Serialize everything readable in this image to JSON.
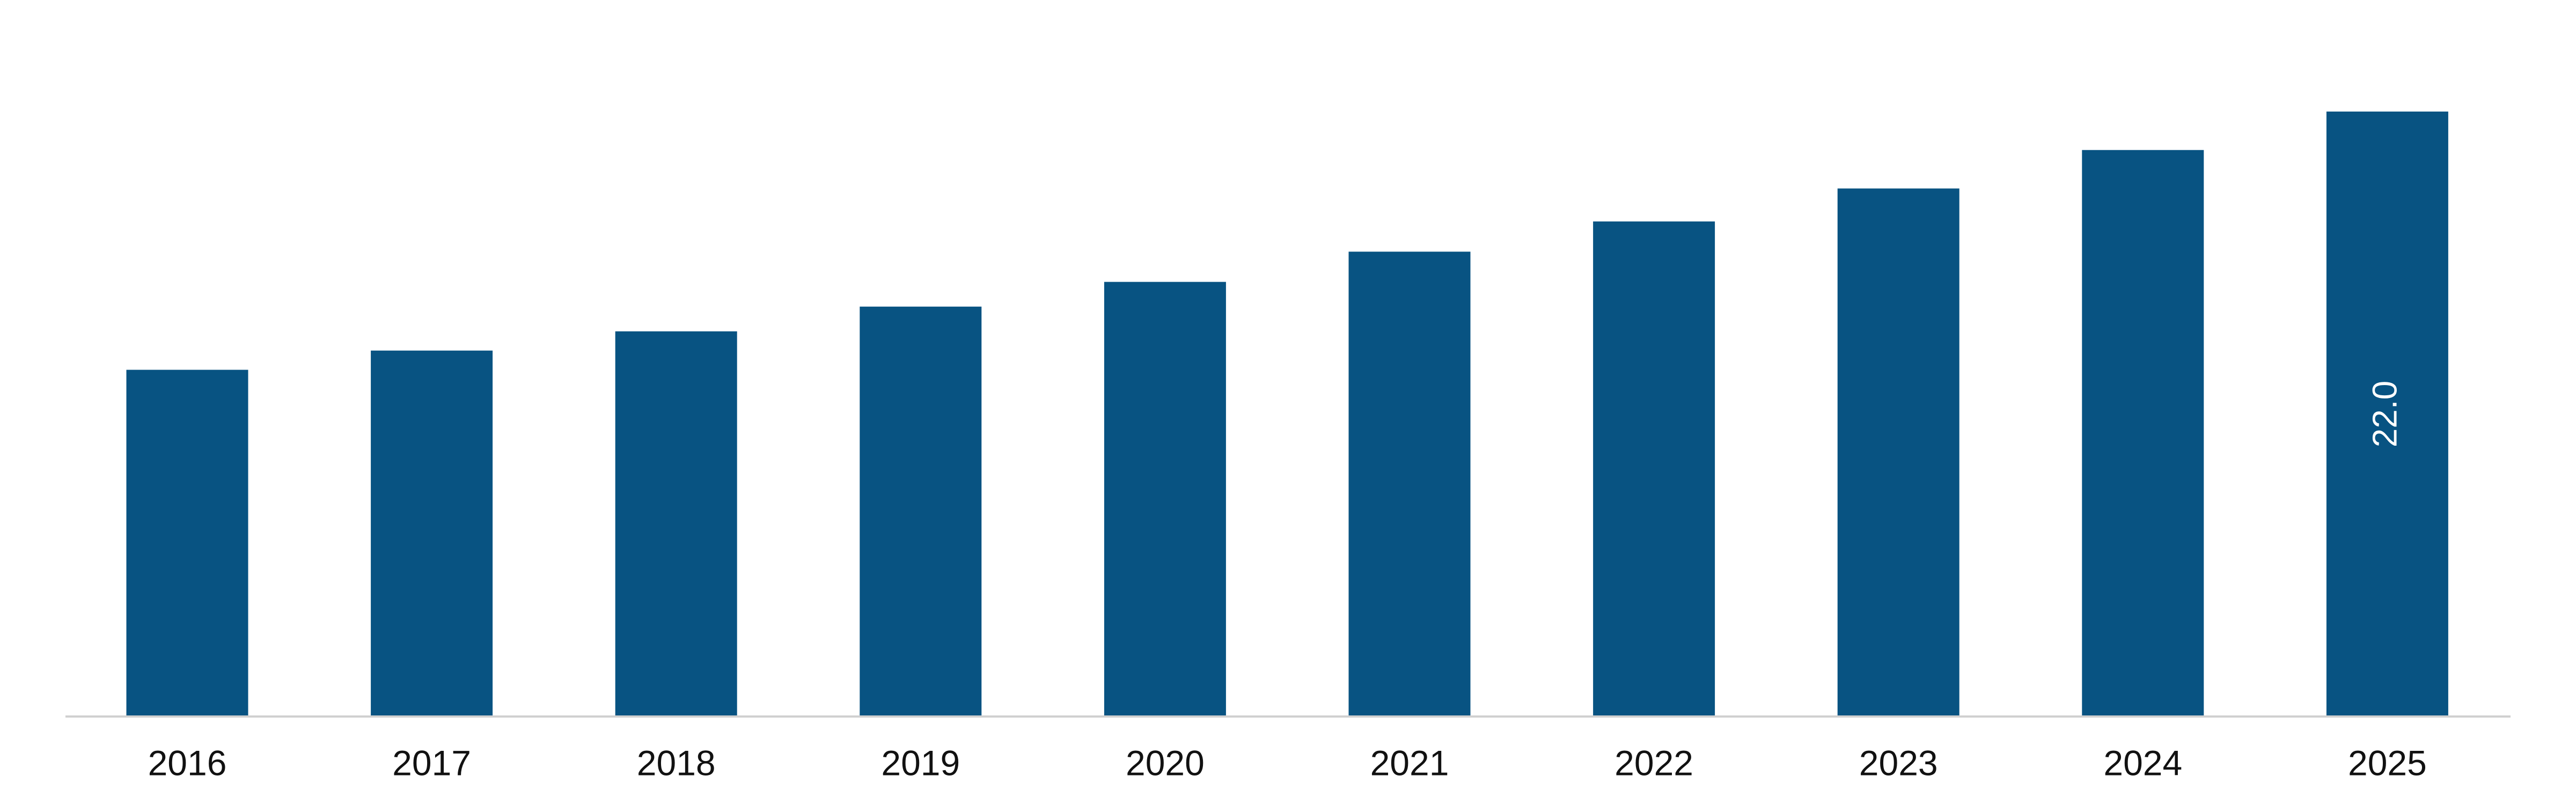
{
  "chart_data": {
    "type": "bar",
    "categories": [
      "2016",
      "2017",
      "2018",
      "2019",
      "2020",
      "2021",
      "2022",
      "2023",
      "2024",
      "2025"
    ],
    "values": [
      12.6,
      13.3,
      14.0,
      14.9,
      15.8,
      16.9,
      18.0,
      19.2,
      20.6,
      22.0
    ],
    "value_labels": [
      null,
      null,
      null,
      null,
      null,
      null,
      null,
      null,
      null,
      "22.0"
    ],
    "color": "#085382"
  }
}
